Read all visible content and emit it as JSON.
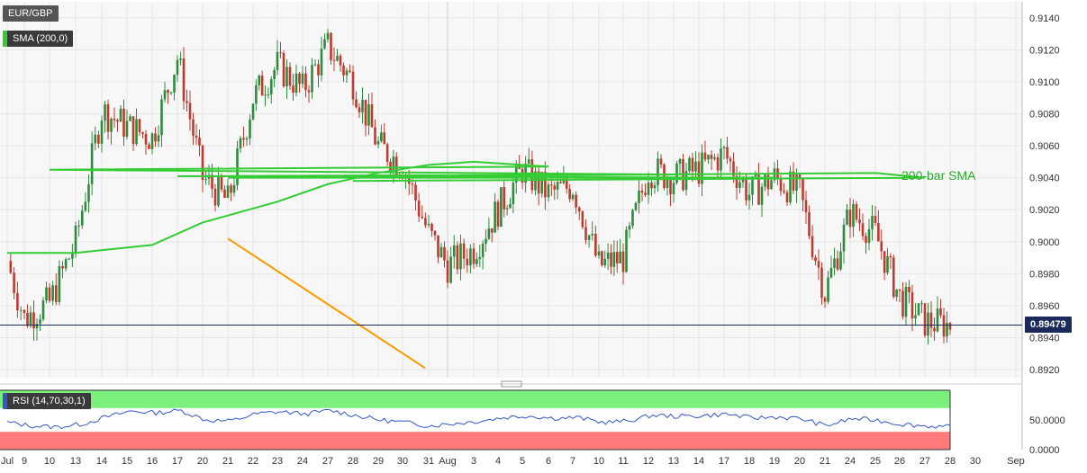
{
  "symbol_label": "EUR/GBP",
  "sma_label": "SMA (200,0)",
  "rsi_label": "RSI (14,70,30,1)",
  "sma_annotation": "200-bar SMA",
  "last_price_label": "0.89479",
  "colors": {
    "up_candle": "#2e8b3e",
    "down_candle": "#c0392b",
    "sma": "#33cc33",
    "trendline": "#ff9900",
    "price_line": "#1a2a5a",
    "rsi_line": "#3355cc",
    "rsi_overbought_band": "#7cf07c",
    "rsi_oversold_band": "#ff7b7b",
    "grid": "#e6e6e6",
    "badge_dark": "#555555",
    "badge_sma": "#3a3a3a",
    "last_price_badge": "#1a2a5a"
  },
  "chart_data": [
    {
      "type": "line",
      "panel": "price",
      "instrument": "EUR/GBP",
      "description_free": true,
      "ylim": [
        0.8915,
        0.915
      ],
      "ytick_labels": [
        "0.9140",
        "0.9120",
        "0.9100",
        "0.9080",
        "0.9060",
        "0.9040",
        "0.9020",
        "0.9000",
        "0.8980",
        "0.8960",
        "0.8940",
        "0.8920"
      ],
      "ytick_values": [
        0.914,
        0.912,
        0.91,
        0.908,
        0.906,
        0.904,
        0.902,
        0.9,
        0.898,
        0.896,
        0.894,
        0.892
      ],
      "xtick_labels": [
        "Jul",
        "9",
        "10",
        "13",
        "14",
        "15",
        "16",
        "17",
        "20",
        "21",
        "22",
        "23",
        "24",
        "27",
        "28",
        "29",
        "30",
        "31",
        "Aug",
        "3",
        "4",
        "5",
        "6",
        "7",
        "10",
        "11",
        "12",
        "13",
        "14",
        "17",
        "18",
        "19",
        "20",
        "21",
        "24",
        "25",
        "26",
        "27",
        "28",
        "30",
        "Sep"
      ],
      "last_price": 0.89479,
      "close_path": [
        [
          "Jul",
          0.8988
        ],
        [
          "9",
          0.8952
        ],
        [
          "10",
          0.8962
        ],
        [
          "13",
          0.9
        ],
        [
          "14",
          0.9082
        ],
        [
          "15",
          0.9072
        ],
        [
          "16",
          0.9065
        ],
        [
          "17",
          0.9115
        ],
        [
          "20",
          0.904
        ],
        [
          "21",
          0.9025
        ],
        [
          "22",
          0.909
        ],
        [
          "23",
          0.911
        ],
        [
          "24",
          0.9095
        ],
        [
          "27",
          0.9122
        ],
        [
          "28",
          0.91
        ],
        [
          "29",
          0.906
        ],
        [
          "30",
          0.9048
        ],
        [
          "31",
          0.9005
        ],
        [
          "Aug",
          0.8985
        ],
        [
          "3",
          0.8995
        ],
        [
          "4",
          0.902
        ],
        [
          "5",
          0.9045
        ],
        [
          "6",
          0.903
        ],
        [
          "7",
          0.9035
        ],
        [
          "10",
          0.8985
        ],
        [
          "11",
          0.899
        ],
        [
          "12",
          0.9045
        ],
        [
          "13",
          0.904
        ],
        [
          "14",
          0.9045
        ],
        [
          "17",
          0.9055
        ],
        [
          "18",
          0.903
        ],
        [
          "19",
          0.904
        ],
        [
          "20",
          0.903
        ],
        [
          "21",
          0.8968
        ],
        [
          "24",
          0.9018
        ],
        [
          "25",
          0.9005
        ],
        [
          "26",
          0.8965
        ],
        [
          "27",
          0.895
        ],
        [
          "28",
          0.8948
        ]
      ],
      "series": [
        {
          "name": "200-bar SMA",
          "points": [
            [
              "Jul",
              0.8993
            ],
            [
              "13",
              0.8993
            ],
            [
              "16",
              0.8998
            ],
            [
              "20",
              0.9012
            ],
            [
              "23",
              0.9025
            ],
            [
              "27",
              0.9036
            ],
            [
              "29",
              0.9043
            ],
            [
              "31",
              0.9048
            ],
            [
              "3",
              0.905
            ],
            [
              "6",
              0.9047
            ],
            [
              "10",
              0.9045
            ],
            [
              "13",
              0.9042
            ],
            [
              "17",
              0.9041
            ],
            [
              "19",
              0.904
            ],
            [
              "21",
              0.904
            ],
            [
              "25",
              0.9043
            ],
            [
              "27",
              0.904
            ],
            [
              "28",
              0.9038
            ]
          ]
        },
        {
          "name": "",
          "role": "trendline",
          "points": [
            [
              "21",
              0.9002
            ],
            [
              "30",
              0.8923
            ]
          ]
        }
      ]
    },
    {
      "type": "line",
      "panel": "rsi",
      "indicator": "RSI (14,70,30,1)",
      "ylim": [
        0,
        100
      ],
      "ytick_labels": [
        "50.0000",
        "0.0000"
      ],
      "ytick_values": [
        50,
        0
      ],
      "overbought": 70,
      "oversold": 30,
      "values": [
        46,
        40,
        38,
        43,
        55,
        65,
        62,
        66,
        50,
        48,
        60,
        64,
        60,
        66,
        58,
        50,
        46,
        40,
        44,
        48,
        54,
        57,
        53,
        54,
        46,
        48,
        58,
        56,
        57,
        60,
        53,
        55,
        52,
        40,
        52,
        50,
        43,
        40,
        38
      ]
    }
  ]
}
